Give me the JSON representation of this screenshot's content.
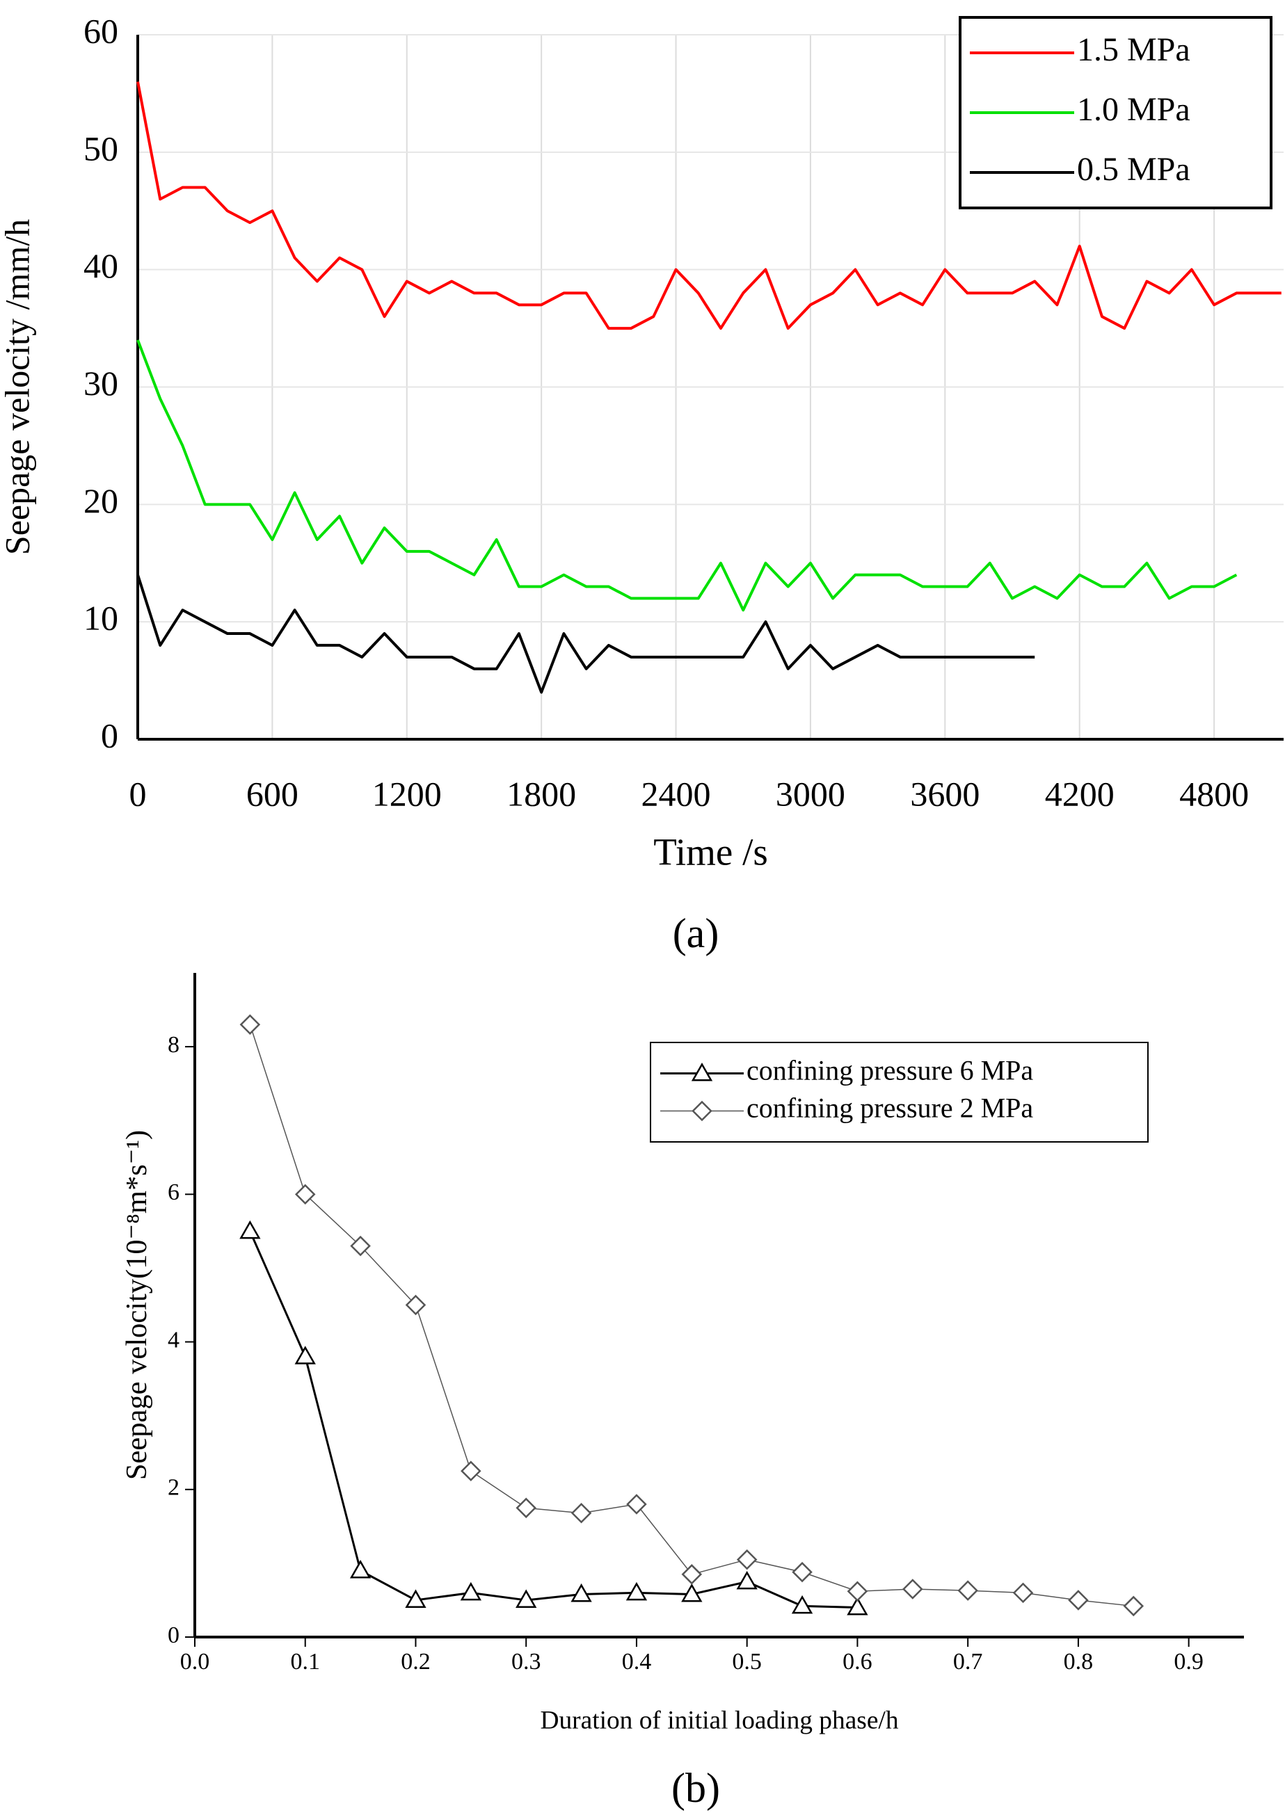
{
  "chart_data": [
    {
      "type": "line",
      "caption": "(a)",
      "x_label": "Time /s",
      "y_label": "Seepage velocity /mm/h",
      "x": [
        0,
        100,
        200,
        300,
        400,
        500,
        600,
        700,
        800,
        900,
        1000,
        1100,
        1200,
        1300,
        1400,
        1500,
        1600,
        1700,
        1800,
        1900,
        2000,
        2100,
        2200,
        2300,
        2400,
        2500,
        2600,
        2700,
        2800,
        2900,
        3000,
        3100,
        3200,
        3300,
        3400,
        3500,
        3600,
        3700,
        3800,
        3900,
        4000,
        4100,
        4200,
        4300,
        4400,
        4500,
        4600,
        4700,
        4800,
        4900,
        5000,
        5100
      ],
      "series": [
        {
          "name": "1.5 MPa",
          "color": "#ff0000",
          "values": [
            56,
            46,
            47,
            47,
            45,
            44,
            45,
            41,
            39,
            41,
            40,
            36,
            39,
            38,
            39,
            38,
            38,
            37,
            37,
            38,
            38,
            35,
            35,
            36,
            40,
            38,
            35,
            38,
            40,
            35,
            37,
            38,
            40,
            37,
            38,
            37,
            40,
            38,
            38,
            38,
            39,
            37,
            42,
            36,
            35,
            39,
            38,
            40,
            37,
            38,
            38,
            38
          ]
        },
        {
          "name": "1.0 MPa",
          "color": "#00e000",
          "values": [
            34,
            29,
            25,
            20,
            20,
            20,
            17,
            21,
            17,
            19,
            15,
            18,
            16,
            16,
            15,
            14,
            17,
            13,
            13,
            14,
            13,
            13,
            12,
            12,
            12,
            12,
            15,
            11,
            15,
            13,
            15,
            12,
            14,
            14,
            14,
            13,
            13,
            13,
            15,
            12,
            13,
            12,
            14,
            13,
            13,
            15,
            12,
            13,
            13,
            14,
            null,
            null
          ]
        },
        {
          "name": "0.5 MPa",
          "color": "#000000",
          "values": [
            14,
            8,
            11,
            10,
            9,
            9,
            8,
            11,
            8,
            8,
            7,
            9,
            7,
            7,
            7,
            6,
            6,
            9,
            4,
            9,
            6,
            8,
            7,
            7,
            7,
            7,
            7,
            7,
            10,
            6,
            8,
            6,
            7,
            8,
            7,
            7,
            7,
            7,
            7,
            7,
            7,
            null,
            null,
            null,
            null,
            null,
            null,
            null,
            null,
            null,
            null,
            null
          ]
        }
      ],
      "xlim": [
        0,
        5110
      ],
      "xticks": [
        0,
        600,
        1200,
        1800,
        2400,
        3000,
        3600,
        4200,
        4800
      ],
      "ylim": [
        0,
        60
      ],
      "yticks": [
        0,
        10,
        20,
        30,
        40,
        50,
        60
      ],
      "grid": true,
      "legend": "upper right"
    },
    {
      "type": "line",
      "caption": "(b)",
      "x_label": "Duration of initial loading phase/h",
      "y_label": "Seepage velocity(10⁻⁸m*s⁻¹)",
      "x": [
        0.05,
        0.1,
        0.15,
        0.2,
        0.25,
        0.3,
        0.35,
        0.4,
        0.45,
        0.5,
        0.55,
        0.6,
        0.65,
        0.7,
        0.75,
        0.8,
        0.85
      ],
      "series": [
        {
          "name": "confining pressure 6 MPa",
          "color": "#000000",
          "marker": "triangle",
          "values": [
            5.5,
            3.8,
            0.9,
            0.5,
            0.6,
            0.5,
            0.58,
            0.6,
            0.58,
            0.75,
            0.42,
            0.4,
            null,
            null,
            null,
            null,
            null
          ]
        },
        {
          "name": "confining pressure 2 MPa",
          "color": "#555555",
          "marker": "diamond",
          "values": [
            8.3,
            6.0,
            5.3,
            4.5,
            2.25,
            1.75,
            1.68,
            1.8,
            0.85,
            1.05,
            0.88,
            0.62,
            0.65,
            0.63,
            0.6,
            0.5,
            0.42
          ]
        }
      ],
      "xlim": [
        0,
        0.95
      ],
      "xticks": [
        {
          "value": 0,
          "label": "0.0"
        },
        0.1,
        0.2,
        0.3,
        0.4,
        0.5,
        0.6,
        0.7,
        0.8,
        0.9
      ],
      "ylim": [
        0,
        9
      ],
      "yticks": [
        0,
        2,
        4,
        6,
        8
      ],
      "grid": false,
      "legend": "upper right"
    }
  ]
}
